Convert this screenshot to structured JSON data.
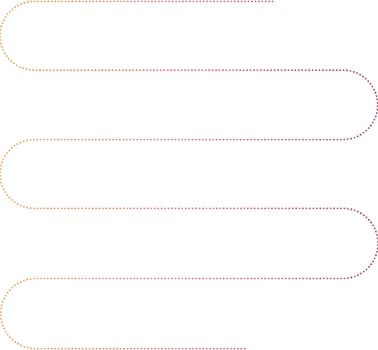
{
  "diagram": {
    "type": "serpentine-dotted-path",
    "loops": 5,
    "gradient": {
      "start_color": "#EEA04E",
      "mid_color": "#E0637E",
      "end_color": "#A43A63"
    }
  }
}
